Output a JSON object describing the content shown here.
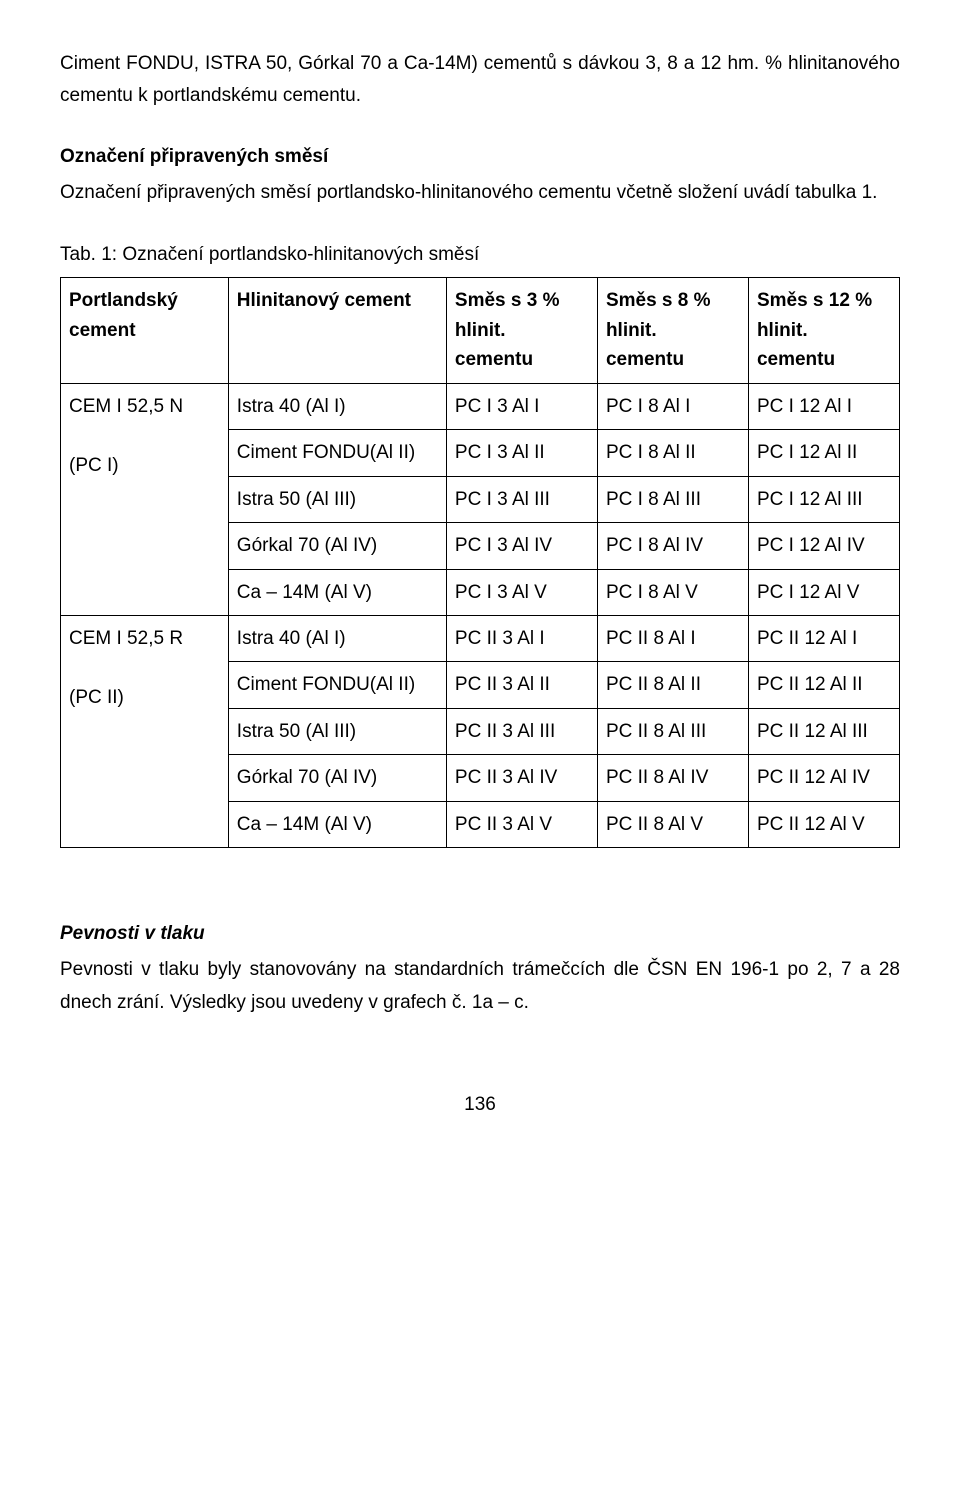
{
  "intro": {
    "p1": "Ciment FONDU, ISTRA 50, Górkal 70 a Ca-14M) cementů s dávkou 3, 8 a 12 hm. % hlinitanového cementu k portlandskému cementu."
  },
  "section1": {
    "title": "Označení připravených směsí",
    "text": "Označení připravených směsí portlandsko-hlinitanového cementu včetně složení uvádí tabulka 1."
  },
  "table": {
    "caption": "Tab. 1: Označení portlandsko-hlinitanových směsí",
    "head": {
      "c1a": "Portlandský",
      "c1b": "cement",
      "c2": "Hlinitanový cement",
      "c3a": "Směs s 3 %",
      "c3b": "hlinit. cementu",
      "c4a": "Směs s 8 %",
      "c4b": "hlinit. cementu",
      "c5a": "Směs s 12 %",
      "c5b": "hlinit. cementu"
    },
    "group1": {
      "label1": "CEM I 52,5 N",
      "label2": "(PC I)",
      "rows": [
        {
          "c2": "Istra 40 (Al I)",
          "c3": "PC I 3 Al I",
          "c4": "PC I 8 Al I",
          "c5": "PC I 12 Al I"
        },
        {
          "c2": "Ciment FONDU(Al II)",
          "c3": "PC I 3 Al II",
          "c4": "PC I 8 Al II",
          "c5": "PC I 12 Al II"
        },
        {
          "c2": "Istra 50 (Al III)",
          "c3": "PC I 3 Al III",
          "c4": "PC I 8 Al III",
          "c5": "PC I 12 Al III"
        },
        {
          "c2": "Górkal 70 (Al IV)",
          "c3": "PC I 3 Al IV",
          "c4": "PC I 8 Al IV",
          "c5": "PC I 12 Al IV"
        },
        {
          "c2": "Ca – 14M (Al V)",
          "c3": "PC I 3 Al V",
          "c4": "PC I 8 Al V",
          "c5": "PC I 12 Al V"
        }
      ]
    },
    "group2": {
      "label1": "CEM I 52,5 R",
      "label2": "(PC II)",
      "rows": [
        {
          "c2": "Istra 40 (Al I)",
          "c3": "PC II 3 Al I",
          "c4": "PC II 8 Al I",
          "c5": "PC II 12 Al I"
        },
        {
          "c2": "Ciment FONDU(Al II)",
          "c3": "PC II 3 Al II",
          "c4": "PC II 8 Al II",
          "c5": "PC II 12 Al II"
        },
        {
          "c2": "Istra 50 (Al III)",
          "c3": "PC II 3 Al III",
          "c4": "PC II 8 Al III",
          "c5": "PC II 12 Al III"
        },
        {
          "c2": "Górkal 70 (Al IV)",
          "c3": "PC II 3 Al IV",
          "c4": "PC II 8 Al IV",
          "c5": "PC II 12 Al IV"
        },
        {
          "c2": "Ca – 14M (Al V)",
          "c3": "PC II 3 Al V",
          "c4": "PC II 8 Al V",
          "c5": "PC II 12 Al V"
        }
      ]
    }
  },
  "footer": {
    "heading": "Pevnosti v tlaku",
    "text": "Pevnosti v tlaku byly stanovovány na standardních trámečcích dle ČSN EN 196-1 po 2, 7 a 28 dnech zrání. Výsledky jsou uvedeny v grafech č. 1a – c."
  },
  "page_number": "136"
}
